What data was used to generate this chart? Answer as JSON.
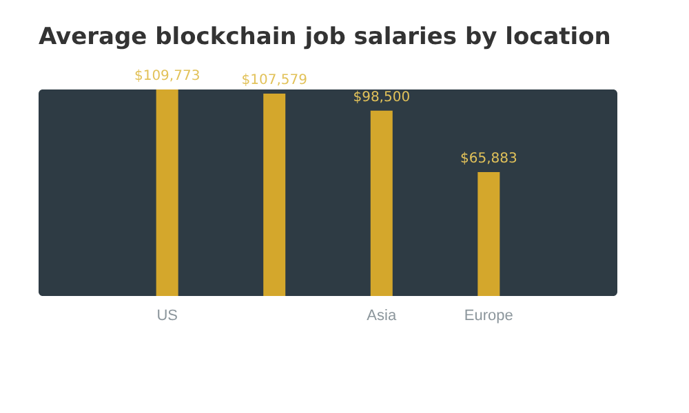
{
  "chart_data": {
    "type": "bar",
    "title": "Average blockchain job salaries by location",
    "categories": [
      "US",
      null,
      "Asia",
      "Europe"
    ],
    "values": [
      109773,
      107579,
      98500,
      65883
    ],
    "value_labels": [
      "$109,773",
      "$107,579",
      "$98,500",
      "$65,883"
    ],
    "color": "#d4a72c",
    "grid": false,
    "tick_labels": "x"
  }
}
